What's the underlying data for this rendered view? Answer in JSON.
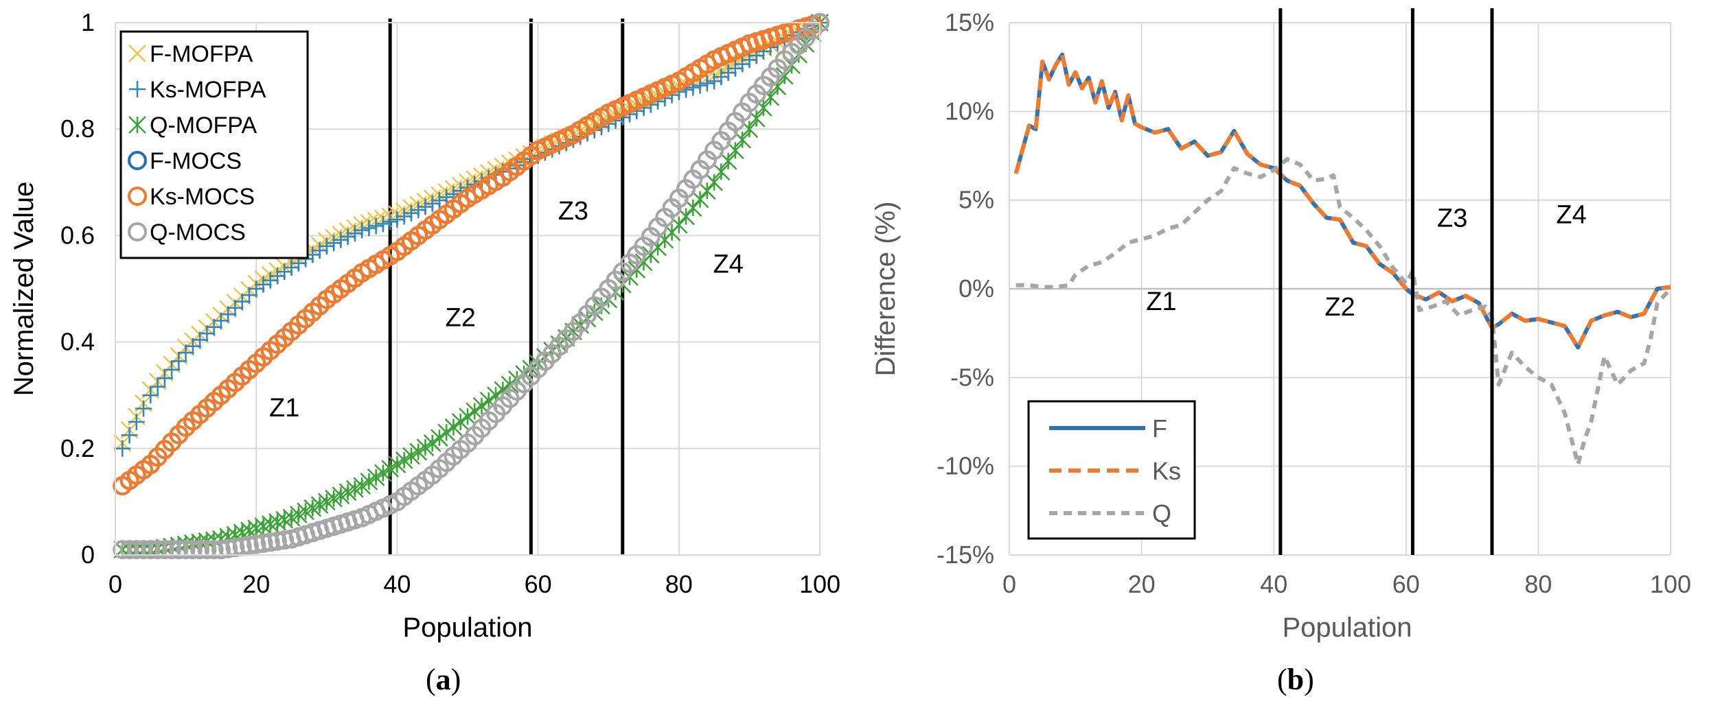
{
  "chart_data": [
    {
      "panel": "a",
      "type": "scatter",
      "caption_letter": "a",
      "xlabel": "Population",
      "ylabel": "Normalized Value",
      "xlim": [
        0,
        100
      ],
      "ylim": [
        0,
        1
      ],
      "xticks": [
        "0",
        "20",
        "40",
        "60",
        "80",
        "100"
      ],
      "yticks": [
        "0",
        "0.2",
        "0.4",
        "0.6",
        "0.8",
        "1"
      ],
      "grid": true,
      "legend_position": "top-left",
      "zone_boundaries": [
        39,
        59,
        72
      ],
      "zones": [
        {
          "label": "Z1",
          "x": 24,
          "y": 0.26
        },
        {
          "label": "Z2",
          "x": 49,
          "y": 0.43
        },
        {
          "label": "Z3",
          "x": 65,
          "y": 0.63
        },
        {
          "label": "Z4",
          "x": 87,
          "y": 0.53
        }
      ],
      "series": [
        {
          "name": "F-MOFPA",
          "marker": "x",
          "color": "#f5c242",
          "points": [
            [
              1,
              0.21
            ],
            [
              5,
              0.31
            ],
            [
              10,
              0.39
            ],
            [
              15,
              0.45
            ],
            [
              20,
              0.51
            ],
            [
              25,
              0.55
            ],
            [
              30,
              0.59
            ],
            [
              35,
              0.62
            ],
            [
              40,
              0.64
            ],
            [
              45,
              0.67
            ],
            [
              50,
              0.7
            ],
            [
              55,
              0.73
            ],
            [
              60,
              0.76
            ],
            [
              65,
              0.79
            ],
            [
              70,
              0.82
            ],
            [
              75,
              0.85
            ],
            [
              80,
              0.88
            ],
            [
              85,
              0.9
            ],
            [
              90,
              0.94
            ],
            [
              95,
              0.97
            ],
            [
              100,
              1.0
            ]
          ]
        },
        {
          "name": "Ks-MOFPA",
          "marker": "+",
          "color": "#2e86c1",
          "points": [
            [
              1,
              0.2
            ],
            [
              5,
              0.3
            ],
            [
              10,
              0.38
            ],
            [
              15,
              0.44
            ],
            [
              20,
              0.5
            ],
            [
              25,
              0.54
            ],
            [
              30,
              0.58
            ],
            [
              35,
              0.61
            ],
            [
              40,
              0.63
            ],
            [
              45,
              0.66
            ],
            [
              50,
              0.69
            ],
            [
              55,
              0.72
            ],
            [
              60,
              0.75
            ],
            [
              65,
              0.78
            ],
            [
              70,
              0.81
            ],
            [
              75,
              0.84
            ],
            [
              80,
              0.87
            ],
            [
              85,
              0.89
            ],
            [
              90,
              0.93
            ],
            [
              95,
              0.97
            ],
            [
              100,
              1.0
            ]
          ]
        },
        {
          "name": "Q-MOFPA",
          "marker": "star",
          "color": "#3aa335",
          "points": [
            [
              1,
              0.01
            ],
            [
              5,
              0.01
            ],
            [
              10,
              0.02
            ],
            [
              15,
              0.03
            ],
            [
              20,
              0.05
            ],
            [
              25,
              0.07
            ],
            [
              30,
              0.1
            ],
            [
              35,
              0.13
            ],
            [
              40,
              0.17
            ],
            [
              45,
              0.21
            ],
            [
              50,
              0.26
            ],
            [
              55,
              0.31
            ],
            [
              60,
              0.36
            ],
            [
              65,
              0.42
            ],
            [
              70,
              0.48
            ],
            [
              75,
              0.55
            ],
            [
              80,
              0.62
            ],
            [
              85,
              0.7
            ],
            [
              90,
              0.8
            ],
            [
              95,
              0.9
            ],
            [
              100,
              1.0
            ]
          ]
        },
        {
          "name": "F-MOCS",
          "marker": "circle",
          "color": "#1f6fbf",
          "points": [
            [
              1,
              0.13
            ],
            [
              5,
              0.17
            ],
            [
              10,
              0.24
            ],
            [
              15,
              0.3
            ],
            [
              20,
              0.36
            ],
            [
              25,
              0.42
            ],
            [
              30,
              0.48
            ],
            [
              35,
              0.53
            ],
            [
              40,
              0.57
            ],
            [
              45,
              0.62
            ],
            [
              50,
              0.67
            ],
            [
              55,
              0.71
            ],
            [
              60,
              0.76
            ],
            [
              65,
              0.79
            ],
            [
              70,
              0.83
            ],
            [
              75,
              0.86
            ],
            [
              80,
              0.89
            ],
            [
              85,
              0.93
            ],
            [
              90,
              0.96
            ],
            [
              95,
              0.98
            ],
            [
              100,
              1.0
            ]
          ]
        },
        {
          "name": "Ks-MOCS",
          "marker": "circle",
          "color": "#f47a2b",
          "points": [
            [
              1,
              0.13
            ],
            [
              5,
              0.17
            ],
            [
              10,
              0.24
            ],
            [
              15,
              0.3
            ],
            [
              20,
              0.36
            ],
            [
              25,
              0.42
            ],
            [
              30,
              0.48
            ],
            [
              35,
              0.53
            ],
            [
              40,
              0.57
            ],
            [
              45,
              0.62
            ],
            [
              50,
              0.67
            ],
            [
              55,
              0.71
            ],
            [
              60,
              0.76
            ],
            [
              65,
              0.79
            ],
            [
              70,
              0.83
            ],
            [
              75,
              0.86
            ],
            [
              80,
              0.89
            ],
            [
              85,
              0.93
            ],
            [
              90,
              0.96
            ],
            [
              95,
              0.98
            ],
            [
              100,
              1.0
            ]
          ]
        },
        {
          "name": "Q-MOCS",
          "marker": "circle",
          "color": "#a6a6a6",
          "points": [
            [
              1,
              0.01
            ],
            [
              5,
              0.01
            ],
            [
              10,
              0.01
            ],
            [
              15,
              0.01
            ],
            [
              20,
              0.02
            ],
            [
              25,
              0.03
            ],
            [
              30,
              0.05
            ],
            [
              35,
              0.07
            ],
            [
              40,
              0.1
            ],
            [
              45,
              0.15
            ],
            [
              50,
              0.21
            ],
            [
              55,
              0.28
            ],
            [
              60,
              0.35
            ],
            [
              65,
              0.42
            ],
            [
              70,
              0.5
            ],
            [
              75,
              0.58
            ],
            [
              80,
              0.67
            ],
            [
              85,
              0.76
            ],
            [
              90,
              0.85
            ],
            [
              95,
              0.93
            ],
            [
              100,
              1.0
            ]
          ]
        }
      ]
    },
    {
      "panel": "b",
      "type": "line",
      "caption_letter": "b",
      "xlabel": "Population",
      "ylabel": "Difference (%)",
      "xlim": [
        0,
        100
      ],
      "ylim": [
        -15,
        15
      ],
      "xticks": [
        "0",
        "20",
        "40",
        "60",
        "80",
        "100"
      ],
      "yticks": [
        "15%",
        "10%",
        "5%",
        "0%",
        "-5%",
        "-10%",
        "-15%"
      ],
      "grid": true,
      "legend_position": "bottom-left",
      "zone_boundaries": [
        41,
        61,
        73
      ],
      "zones": [
        {
          "label": "Z1",
          "x": 23,
          "y": -1.2
        },
        {
          "label": "Z2",
          "x": 50,
          "y": -1.5
        },
        {
          "label": "Z3",
          "x": 67,
          "y": 3.5
        },
        {
          "label": "Z4",
          "x": 85,
          "y": 3.7
        }
      ],
      "series": [
        {
          "name": "F",
          "color": "#2e75b6",
          "dash": "solid",
          "x": [
            1,
            3,
            4,
            5,
            6,
            7,
            8,
            9,
            10,
            11,
            12,
            13,
            14,
            15,
            16,
            17,
            18,
            19,
            20,
            22,
            24,
            26,
            28,
            30,
            32,
            34,
            36,
            38,
            40,
            42,
            44,
            46,
            48,
            50,
            52,
            54,
            56,
            58,
            60,
            61,
            63,
            65,
            67,
            69,
            71,
            73,
            74,
            76,
            78,
            80,
            82,
            84,
            86,
            88,
            90,
            92,
            94,
            96,
            98,
            100
          ],
          "values": [
            6.5,
            9.2,
            9.0,
            12.8,
            11.8,
            12.6,
            13.2,
            11.5,
            12.2,
            11.3,
            11.9,
            10.5,
            11.7,
            10.2,
            11.1,
            9.5,
            10.9,
            9.3,
            9.1,
            8.8,
            9.0,
            7.9,
            8.3,
            7.5,
            7.7,
            8.9,
            7.6,
            7.0,
            6.8,
            6.1,
            5.8,
            4.8,
            4.0,
            3.9,
            2.6,
            2.4,
            1.4,
            0.9,
            0.0,
            -0.3,
            -0.6,
            -0.2,
            -0.7,
            -0.4,
            -0.8,
            -2.2,
            -2.0,
            -1.4,
            -1.8,
            -1.7,
            -1.9,
            -2.1,
            -3.3,
            -1.8,
            -1.5,
            -1.3,
            -1.6,
            -1.4,
            0.0,
            0.1
          ]
        },
        {
          "name": "Ks",
          "color": "#f47a2b",
          "dash": "long-dash",
          "x": [
            1,
            3,
            4,
            5,
            6,
            7,
            8,
            9,
            10,
            11,
            12,
            13,
            14,
            15,
            16,
            17,
            18,
            19,
            20,
            22,
            24,
            26,
            28,
            30,
            32,
            34,
            36,
            38,
            40,
            42,
            44,
            46,
            48,
            50,
            52,
            54,
            56,
            58,
            60,
            61,
            63,
            65,
            67,
            69,
            71,
            73,
            74,
            76,
            78,
            80,
            82,
            84,
            86,
            88,
            90,
            92,
            94,
            96,
            98,
            100
          ],
          "values": [
            6.5,
            9.2,
            9.0,
            12.8,
            11.8,
            12.6,
            13.2,
            11.5,
            12.2,
            11.3,
            11.9,
            10.5,
            11.7,
            10.2,
            11.1,
            9.5,
            10.9,
            9.3,
            9.1,
            8.8,
            9.0,
            7.9,
            8.3,
            7.5,
            7.7,
            8.9,
            7.6,
            7.0,
            6.8,
            6.1,
            5.8,
            4.8,
            4.0,
            3.9,
            2.6,
            2.4,
            1.4,
            0.9,
            0.0,
            -0.3,
            -0.6,
            -0.2,
            -0.7,
            -0.4,
            -0.8,
            -2.2,
            -2.0,
            -1.4,
            -1.8,
            -1.7,
            -1.9,
            -2.1,
            -3.3,
            -1.8,
            -1.5,
            -1.3,
            -1.6,
            -1.4,
            0.0,
            0.1
          ]
        },
        {
          "name": "Q",
          "color": "#a6a6a6",
          "dash": "short-dash",
          "x": [
            1,
            3,
            5,
            7,
            9,
            10,
            12,
            14,
            16,
            18,
            20,
            22,
            24,
            26,
            28,
            30,
            32,
            34,
            36,
            38,
            40,
            42,
            44,
            46,
            48,
            49,
            50,
            52,
            54,
            56,
            58,
            60,
            61,
            62,
            64,
            66,
            68,
            70,
            72,
            73,
            74,
            76,
            78,
            80,
            82,
            84,
            86,
            87,
            88,
            90,
            92,
            94,
            96,
            97,
            98,
            100
          ],
          "values": [
            0.2,
            0.2,
            0.1,
            0.1,
            0.2,
            0.8,
            1.3,
            1.5,
            2.0,
            2.6,
            2.8,
            3.0,
            3.4,
            3.6,
            4.3,
            5.0,
            5.5,
            6.8,
            6.5,
            6.3,
            6.7,
            7.3,
            7.0,
            6.1,
            6.2,
            6.4,
            4.6,
            4.0,
            3.3,
            2.4,
            1.2,
            0.3,
            1.0,
            -1.2,
            -1.0,
            -0.7,
            -1.5,
            -1.2,
            -1.0,
            -1.6,
            -5.4,
            -3.6,
            -4.4,
            -5.0,
            -5.4,
            -7.0,
            -9.9,
            -8.5,
            -7.5,
            -3.8,
            -5.4,
            -4.6,
            -4.2,
            -2.8,
            -0.8,
            0.0
          ]
        }
      ]
    }
  ]
}
